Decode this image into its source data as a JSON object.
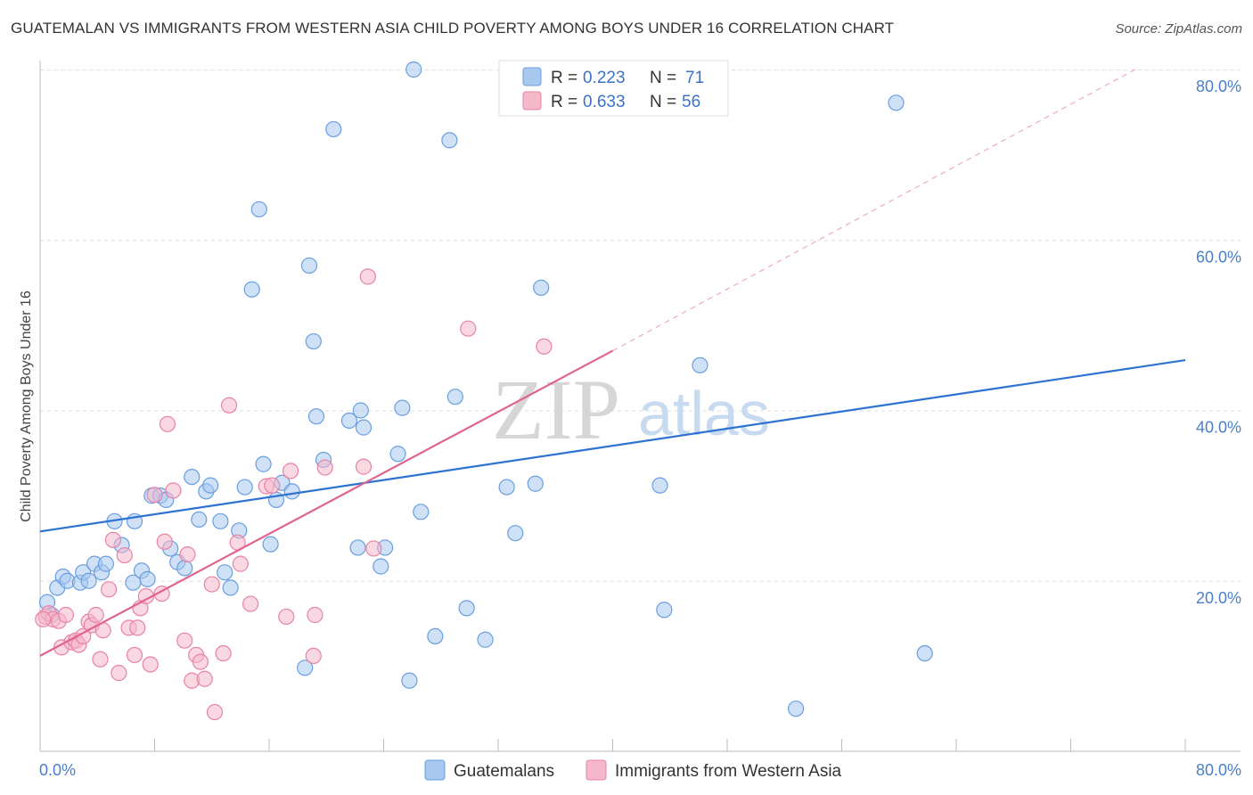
{
  "title": "GUATEMALAN VS IMMIGRANTS FROM WESTERN ASIA CHILD POVERTY AMONG BOYS UNDER 16 CORRELATION CHART",
  "source": "Source: ZipAtlas.com",
  "watermark": {
    "zip": "ZIP",
    "atlas": "atlas"
  },
  "colors": {
    "blue_fill": "#a8c8f0",
    "blue_stroke": "#6a9ee0",
    "blue_line": "#2e72d2",
    "pink_fill": "#f5b8cb",
    "pink_stroke": "#e883a5",
    "pink_line": "#e0648e",
    "tick_text": "#4a7fc8",
    "grid": "#dddddd"
  },
  "legend": {
    "rows": [
      {
        "r_label": "R = ",
        "r_value": "0.223",
        "n_label": "N = ",
        "n_value": "71"
      },
      {
        "r_label": "R = ",
        "r_value": "0.633",
        "n_label": "N = ",
        "n_value": "56"
      }
    ]
  },
  "chart_data": {
    "type": "scatter",
    "title": "GUATEMALAN VS IMMIGRANTS FROM WESTERN ASIA CHILD POVERTY AMONG BOYS UNDER 16 CORRELATION CHART",
    "xlabel": "",
    "ylabel": "Child Poverty Among Boys Under 16",
    "xlim": [
      0,
      80
    ],
    "ylim": [
      0,
      80
    ],
    "x_tick_labels": [
      "0.0%",
      "80.0%"
    ],
    "y_tick_labels": [
      "20.0%",
      "40.0%",
      "60.0%",
      "80.0%"
    ],
    "y_ticks": [
      20,
      40,
      60,
      80
    ],
    "grid": true,
    "legend_position": "top-center",
    "series": [
      {
        "name": "Guatemalans",
        "color": "#a8c8f0",
        "trend": {
          "x": [
            0,
            80
          ],
          "y": [
            25.8,
            45.9
          ],
          "style": "solid"
        },
        "points": [
          [
            0.5,
            17.5
          ],
          [
            0.8,
            16.0
          ],
          [
            1.2,
            19.2
          ],
          [
            1.6,
            20.5
          ],
          [
            1.9,
            20.0
          ],
          [
            2.8,
            19.8
          ],
          [
            3.0,
            21.0
          ],
          [
            3.4,
            20.0
          ],
          [
            3.8,
            22.0
          ],
          [
            4.3,
            21.0
          ],
          [
            4.6,
            22.0
          ],
          [
            5.2,
            27.0
          ],
          [
            5.7,
            24.2
          ],
          [
            6.5,
            19.8
          ],
          [
            6.6,
            27.0
          ],
          [
            7.1,
            21.2
          ],
          [
            7.5,
            20.2
          ],
          [
            7.8,
            30.0
          ],
          [
            8.4,
            30.0
          ],
          [
            8.8,
            29.5
          ],
          [
            9.1,
            23.8
          ],
          [
            9.6,
            22.2
          ],
          [
            10.1,
            21.5
          ],
          [
            10.6,
            32.2
          ],
          [
            11.1,
            27.2
          ],
          [
            11.6,
            30.5
          ],
          [
            11.9,
            31.2
          ],
          [
            12.6,
            27.0
          ],
          [
            12.9,
            21.0
          ],
          [
            13.3,
            19.2
          ],
          [
            13.9,
            25.9
          ],
          [
            14.3,
            31.0
          ],
          [
            14.8,
            54.2
          ],
          [
            15.3,
            63.6
          ],
          [
            15.6,
            33.7
          ],
          [
            16.1,
            24.3
          ],
          [
            16.5,
            29.5
          ],
          [
            16.9,
            31.5
          ],
          [
            17.6,
            30.5
          ],
          [
            18.5,
            9.8
          ],
          [
            18.8,
            57.0
          ],
          [
            19.1,
            48.1
          ],
          [
            19.3,
            39.3
          ],
          [
            19.8,
            34.2
          ],
          [
            20.5,
            73.0
          ],
          [
            21.6,
            38.8
          ],
          [
            22.2,
            23.9
          ],
          [
            22.4,
            40.0
          ],
          [
            22.6,
            38.0
          ],
          [
            23.8,
            21.7
          ],
          [
            24.1,
            23.9
          ],
          [
            25.0,
            34.9
          ],
          [
            25.3,
            40.3
          ],
          [
            25.8,
            8.3
          ],
          [
            26.1,
            80.0
          ],
          [
            26.6,
            28.1
          ],
          [
            27.6,
            13.5
          ],
          [
            28.6,
            71.7
          ],
          [
            29.0,
            41.6
          ],
          [
            29.8,
            16.8
          ],
          [
            31.1,
            13.1
          ],
          [
            32.6,
            31.0
          ],
          [
            33.2,
            25.6
          ],
          [
            34.6,
            31.4
          ],
          [
            35.0,
            54.4
          ],
          [
            43.3,
            31.2
          ],
          [
            43.6,
            16.6
          ],
          [
            46.1,
            45.3
          ],
          [
            52.8,
            5.0
          ],
          [
            59.8,
            76.1
          ],
          [
            61.8,
            11.5
          ]
        ]
      },
      {
        "name": "Immigrants from Western Asia",
        "color": "#f5b8cb",
        "trend": {
          "x": [
            0,
            40
          ],
          "y": [
            11.2,
            47.0
          ],
          "style": "solid",
          "extended": {
            "x": [
              40,
              76.5
            ],
            "y": [
              47.0,
              80.0
            ],
            "style": "dashed"
          }
        },
        "points": [
          [
            0.4,
            15.8
          ],
          [
            0.6,
            16.2
          ],
          [
            0.9,
            15.5
          ],
          [
            1.3,
            15.3
          ],
          [
            1.5,
            12.2
          ],
          [
            1.8,
            16.0
          ],
          [
            2.2,
            12.8
          ],
          [
            2.5,
            13.0
          ],
          [
            2.7,
            12.5
          ],
          [
            3.0,
            13.5
          ],
          [
            3.4,
            15.2
          ],
          [
            3.6,
            14.8
          ],
          [
            3.9,
            16.0
          ],
          [
            4.2,
            10.8
          ],
          [
            4.4,
            14.2
          ],
          [
            4.8,
            19.0
          ],
          [
            5.1,
            24.8
          ],
          [
            5.5,
            9.2
          ],
          [
            5.9,
            23.0
          ],
          [
            6.2,
            14.5
          ],
          [
            6.6,
            11.3
          ],
          [
            6.8,
            14.5
          ],
          [
            7.0,
            16.8
          ],
          [
            7.4,
            18.2
          ],
          [
            7.7,
            10.2
          ],
          [
            8.0,
            30.1
          ],
          [
            8.5,
            18.5
          ],
          [
            8.7,
            24.6
          ],
          [
            8.9,
            38.4
          ],
          [
            9.3,
            30.6
          ],
          [
            10.1,
            13.0
          ],
          [
            10.3,
            23.1
          ],
          [
            10.6,
            8.3
          ],
          [
            10.9,
            11.3
          ],
          [
            11.2,
            10.5
          ],
          [
            11.5,
            8.5
          ],
          [
            12.0,
            19.6
          ],
          [
            12.2,
            4.6
          ],
          [
            12.8,
            11.5
          ],
          [
            13.2,
            40.6
          ],
          [
            13.8,
            24.5
          ],
          [
            14.0,
            22.0
          ],
          [
            14.7,
            17.3
          ],
          [
            15.8,
            31.1
          ],
          [
            16.2,
            31.2
          ],
          [
            17.2,
            15.8
          ],
          [
            17.5,
            32.9
          ],
          [
            19.1,
            11.2
          ],
          [
            19.2,
            16.0
          ],
          [
            19.9,
            33.3
          ],
          [
            22.6,
            33.4
          ],
          [
            22.9,
            55.7
          ],
          [
            23.3,
            23.8
          ],
          [
            29.9,
            49.6
          ],
          [
            35.2,
            47.5
          ],
          [
            0.2,
            15.5
          ]
        ]
      }
    ]
  },
  "bottom_legend": [
    {
      "label": "Guatemalans"
    },
    {
      "label": "Immigrants from Western Asia"
    }
  ]
}
